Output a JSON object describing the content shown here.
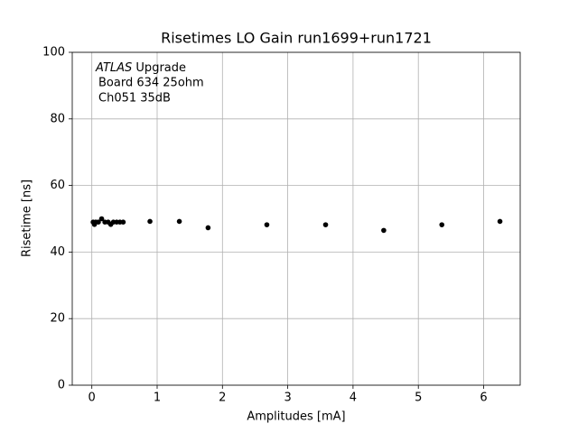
{
  "chart_data": {
    "type": "scatter",
    "title": "Risetimes LO Gain run1699+run1721",
    "x_label": "Amplitudes [mA]",
    "y_label": "Risetime [ns]",
    "experiment": "ATLAS",
    "annotation": [
      "Upgrade",
      "Board 634 25ohm",
      "Ch051 35dB"
    ],
    "x": [
      0.02,
      0.04,
      0.06,
      0.1,
      0.15,
      0.2,
      0.25,
      0.29,
      0.33,
      0.38,
      0.43,
      0.48,
      0.89,
      1.34,
      1.78,
      2.68,
      3.58,
      4.47,
      5.36,
      6.25
    ],
    "values": [
      49,
      48.3,
      49,
      49,
      50,
      49,
      49,
      48.3,
      49,
      49,
      49,
      49,
      49.2,
      49.2,
      47.3,
      48.2,
      48.2,
      46.5,
      48.2,
      49.2
    ],
    "color": "#000000",
    "xlim": [
      -0.3,
      6.56
    ],
    "xticks": [
      0,
      1,
      2,
      3,
      4,
      5,
      6
    ],
    "ylim": [
      0,
      100
    ],
    "yticks": [
      0,
      20,
      40,
      60,
      80,
      100
    ],
    "grid": true
  }
}
